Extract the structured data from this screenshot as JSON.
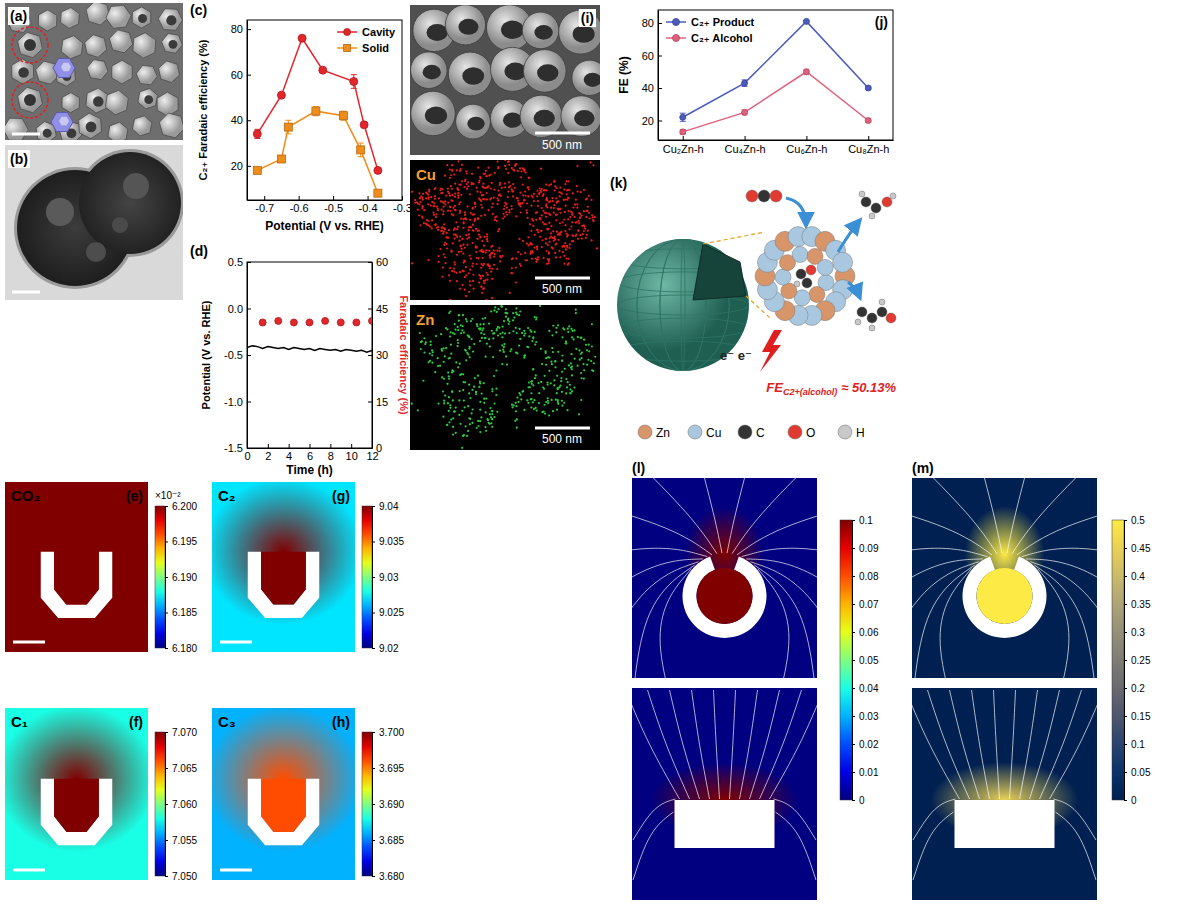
{
  "chart_data": [
    {
      "panel_label": "(c)",
      "type": "line",
      "x_label": "Potential (V vs. RHE)",
      "y_label": "C₂₊ Faradaic efficiency (%)",
      "xlim": [
        -0.75,
        -0.3
      ],
      "xticks": [
        -0.7,
        -0.6,
        -0.5,
        -0.4,
        -0.3
      ],
      "ylim": [
        5,
        84
      ],
      "yticks": [
        20,
        40,
        60,
        80
      ],
      "legend": "upper right",
      "series": [
        {
          "name": "Cavity",
          "color": "#e3262b",
          "marker": "circle",
          "x": [
            -0.72,
            -0.65,
            -0.59,
            -0.53,
            -0.44,
            -0.41,
            -0.37
          ],
          "values": [
            34,
            51,
            76,
            62,
            57,
            38,
            18
          ],
          "errors": [
            2,
            1,
            1,
            1,
            3,
            1,
            1
          ]
        },
        {
          "name": "Solid",
          "color": "#f08c1a",
          "marker": "square",
          "x": [
            -0.72,
            -0.65,
            -0.63,
            -0.55,
            -0.47,
            -0.42,
            -0.37
          ],
          "values": [
            18,
            23,
            37,
            44,
            42,
            27,
            8
          ],
          "errors": [
            1,
            1,
            3,
            2,
            2,
            3,
            1
          ]
        }
      ]
    },
    {
      "panel_label": "(d)",
      "type": "line",
      "x_label": "Time (h)",
      "y_label": "Potential (V vs. RHE)",
      "y2_label": "Faradaic efficiency (%)",
      "xlim": [
        0,
        12
      ],
      "xticks": [
        0,
        2,
        4,
        6,
        8,
        10,
        12
      ],
      "ylim": [
        -1.5,
        0.5
      ],
      "yticks": [
        -1.5,
        {
          "value": -1,
          "label": "-1.0"
        },
        -0.5,
        {
          "value": 0,
          "label": "0.0"
        },
        0.5
      ],
      "y2lim": [
        0,
        60
      ],
      "y2ticks": [
        0,
        15,
        30,
        45,
        60
      ],
      "series": [
        {
          "type": "line",
          "color": "#000000",
          "x": [
            0,
            0.5,
            1,
            1.5,
            2,
            2.5,
            3,
            3.5,
            4,
            4.5,
            5,
            5.5,
            6,
            6.5,
            7,
            7.5,
            8,
            8.5,
            9,
            9.5,
            10,
            10.5,
            11,
            11.5,
            12
          ],
          "values": [
            -0.42,
            -0.4,
            -0.41,
            -0.43,
            -0.41,
            -0.42,
            -0.43,
            -0.42,
            -0.44,
            -0.42,
            -0.43,
            -0.44,
            -0.43,
            -0.45,
            -0.43,
            -0.44,
            -0.45,
            -0.44,
            -0.46,
            -0.44,
            -0.45,
            -0.46,
            -0.45,
            -0.47,
            -0.45
          ]
        },
        {
          "type": "scatter",
          "axis": "y2",
          "color": "#e3262b",
          "marker": "circle",
          "x": [
            1.5,
            3,
            4.5,
            6,
            7.5,
            9,
            10.5,
            12
          ],
          "values": [
            40.5,
            41,
            40.5,
            40.5,
            41,
            40.5,
            40.5,
            41
          ]
        }
      ]
    },
    {
      "panel_label": "(j)",
      "type": "line",
      "y_label": "FE (%)",
      "categories": [
        "Cu₂Zn-h",
        "Cu₄Zn-h",
        "Cu₆Zn-h",
        "Cu₈Zn-h"
      ],
      "ylim": [
        8,
        88
      ],
      "yticks": [
        20,
        40,
        60,
        80
      ],
      "legend": "upper left",
      "series": [
        {
          "name": "C₂₊ Product",
          "color": "#4b5bbd",
          "marker": "circle",
          "values": [
            22,
            43,
            81,
            40
          ],
          "errors": [
            2.5,
            2,
            0.5,
            1
          ]
        },
        {
          "name": "C₂₊ Alcohol",
          "color": "#e0607e",
          "marker": "circle",
          "values": [
            13,
            25,
            50,
            20
          ],
          "errors": [
            1.5,
            1.5,
            1.5,
            1.2
          ]
        }
      ]
    },
    {
      "panel_label": "(e)",
      "type": "heatmap",
      "title": "CO₂",
      "color": "jet",
      "colorbar_range": [
        6.18,
        6.2
      ],
      "colorbar_ticks": [
        {
          "value": 6.18,
          "label": "6.180"
        },
        6.185,
        {
          "value": 6.19,
          "label": "6.190"
        },
        6.195,
        {
          "value": 6.2,
          "label": "6.200"
        }
      ],
      "colorbar_title": "×10⁻²",
      "inside_value": 6.2,
      "outside_value": 6.2
    },
    {
      "panel_label": "(g)",
      "type": "heatmap",
      "title": "C₂",
      "color": "jet",
      "colorbar_range": [
        9.02,
        9.04
      ],
      "colorbar_ticks": [
        9.02,
        9.025,
        9.03,
        9.035,
        9.04
      ],
      "inside_value": 9.04,
      "outside_value": 9.027
    },
    {
      "panel_label": "(f)",
      "type": "heatmap",
      "title": "C₁",
      "color": "jet",
      "colorbar_range": [
        7.05,
        7.07
      ],
      "colorbar_ticks": [
        {
          "value": 7.05,
          "label": "7.050"
        },
        7.055,
        {
          "value": 7.06,
          "label": "7.060"
        },
        7.065,
        {
          "value": 7.07,
          "label": "7.070"
        }
      ],
      "inside_value": 7.07,
      "outside_value": 7.058
    },
    {
      "panel_label": "(h)",
      "type": "heatmap",
      "title": "C₃",
      "color": "jet",
      "colorbar_range": [
        3.68,
        3.7
      ],
      "colorbar_ticks": [
        {
          "value": 3.68,
          "label": "3.680"
        },
        3.685,
        {
          "value": 3.69,
          "label": "3.690"
        },
        3.695,
        {
          "value": 3.7,
          "label": "3.700"
        }
      ],
      "inside_value": 3.696,
      "outside_value": 3.686
    },
    {
      "panel_label": "(l)",
      "type": "heatmap",
      "color": "jet",
      "colorbar_range": [
        0,
        0.1
      ],
      "colorbar_ticks": [
        0,
        0.01,
        0.02,
        0.03,
        0.04,
        0.05,
        0.06,
        0.07,
        0.08,
        0.09,
        0.1
      ],
      "cavity_value": 0.1,
      "flat_value": 0.1,
      "outside_value": 0
    },
    {
      "panel_label": "(m)",
      "type": "heatmap",
      "color": "cividis",
      "colorbar_range": [
        0,
        0.5
      ],
      "colorbar_ticks": [
        0,
        0.05,
        0.1,
        0.15,
        0.2,
        0.25,
        0.3,
        0.35,
        0.4,
        0.45,
        0.5
      ],
      "cavity_value": 0.5,
      "flat_value": 0.45,
      "outside_value": 0
    }
  ],
  "images": [
    {
      "panel_label": "(a)"
    },
    {
      "panel_label": "(b)"
    },
    {
      "panel_label": "(i)",
      "parts": [
        {
          "scale_bar": "500 nm"
        },
        {
          "label": "Cu",
          "color": "#e8201a",
          "scale_bar": "500 nm"
        },
        {
          "label": "Zn",
          "color": "#2ecc40",
          "scale_bar": "500 nm"
        }
      ]
    }
  ],
  "schematic": {
    "panel_label": "(k)",
    "annotation": {
      "main": "FE",
      "sub": "C2+(alcohol)",
      "value": "≈ 50.13%"
    },
    "electrons": "e⁻ e⁻",
    "legend": [
      {
        "name": "Zn",
        "color": "#d9956a"
      },
      {
        "name": "Cu",
        "color": "#a9c8e0"
      },
      {
        "name": "C",
        "color": "#333333"
      },
      {
        "name": "O",
        "color": "#e03b30"
      },
      {
        "name": "H",
        "color": "#c8c8c8"
      }
    ]
  }
}
